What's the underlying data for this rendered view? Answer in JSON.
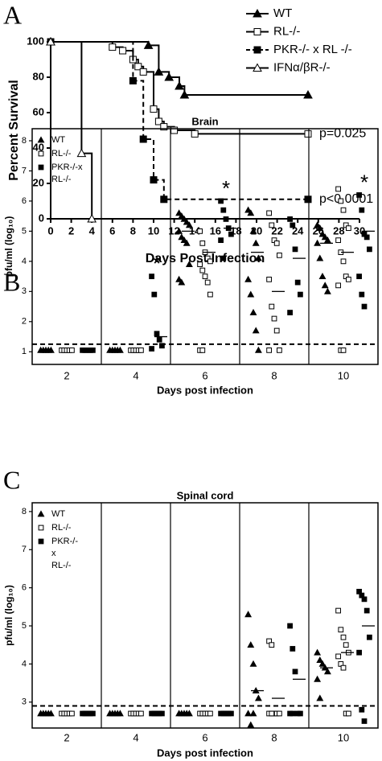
{
  "chart_data": [
    {
      "type": "line",
      "panel": "A",
      "xlabel": "Days Post Infection",
      "ylabel": "Percent Survival",
      "xlim": [
        0,
        30
      ],
      "ylim": [
        0,
        100
      ],
      "xticks": [
        0,
        2,
        4,
        6,
        8,
        10,
        12,
        14,
        16,
        18,
        20,
        22,
        24,
        26,
        28,
        30
      ],
      "yticks": [
        0,
        20,
        40,
        60,
        80,
        100
      ],
      "step": true,
      "series": [
        {
          "name": "WT",
          "color": "#000000",
          "marker": "triangle",
          "filled": true,
          "dashed": false,
          "x": [
            0,
            9.5,
            10.5,
            11.5,
            12.5,
            13,
            25
          ],
          "values": [
            100,
            98,
            83,
            80,
            75,
            70,
            70
          ]
        },
        {
          "name": "RL-/-",
          "color": "#000000",
          "marker": "square",
          "filled": false,
          "dashed": false,
          "x": [
            0,
            6,
            7,
            8,
            8.5,
            9,
            10,
            10.5,
            11,
            12,
            14,
            25
          ],
          "values": [
            100,
            97,
            95,
            90,
            86,
            83,
            62,
            55,
            52,
            50,
            48,
            48
          ]
        },
        {
          "name": "PKR-/- x RL -/-",
          "color": "#000000",
          "marker": "square",
          "filled": true,
          "dashed": true,
          "x": [
            0,
            8,
            9,
            10,
            11,
            25
          ],
          "values": [
            100,
            78,
            45,
            22,
            11,
            11
          ]
        },
        {
          "name": "IFNα/βR-/-",
          "color": "#000000",
          "marker": "triangle",
          "filled": false,
          "dashed": false,
          "x": [
            0,
            3,
            4
          ],
          "values": [
            100,
            37,
            0
          ]
        }
      ],
      "annotations": [
        {
          "text": "p=0.025",
          "series": 1
        },
        {
          "text": "p<0.0001",
          "series": 2
        }
      ]
    },
    {
      "type": "dotplot",
      "panel": "B",
      "title": "Brain",
      "xlabel": "Days post infection",
      "ylabel": "pfu/ml (log₁₀)",
      "categories": [
        "2",
        "4",
        "6",
        "8",
        "10"
      ],
      "ylim": [
        0.58,
        8.4
      ],
      "yticks": [
        1,
        2,
        3,
        4,
        5,
        6,
        7,
        8
      ],
      "threshold": 1.25,
      "series": [
        {
          "name": "WT",
          "marker": "triangle",
          "filled": true,
          "values": [
            [
              1.05,
              1.05,
              1.05,
              1.05,
              1.05
            ],
            [
              1.05,
              1.05,
              1.05,
              1.05,
              1.05
            ],
            [
              5.6,
              5.5,
              5.4,
              5.3,
              5.2,
              5.0,
              4.8,
              4.7,
              4.6,
              3.9,
              3.4,
              3.3
            ],
            [
              5.7,
              5.6,
              5.0,
              4.6,
              4.1,
              3.4,
              2.9,
              2.3,
              1.7,
              1.05
            ],
            [
              5.2,
              5.1,
              4.9,
              4.8,
              4.7,
              4.6,
              4.1,
              3.5,
              3.2,
              3.0
            ]
          ],
          "medians": [
            null,
            null,
            5.0,
            4.3,
            4.6
          ]
        },
        {
          "name": "RL-/-",
          "marker": "square",
          "filled": false,
          "values": [
            [
              1.05,
              1.05,
              1.05,
              1.05,
              1.05
            ],
            [
              1.05,
              1.05,
              1.05,
              1.05,
              1.05
            ],
            [
              5.0,
              4.6,
              4.3,
              4.1,
              4.0,
              3.9,
              3.7,
              3.5,
              3.3,
              2.9,
              1.05,
              1.05
            ],
            [
              5.6,
              5.2,
              4.7,
              4.6,
              4.2,
              3.4,
              2.5,
              2.1,
              1.7,
              1.05,
              1.05
            ],
            [
              6.4,
              6.0,
              5.7,
              5.2,
              5.1,
              4.7,
              4.3,
              4.0,
              3.5,
              3.4,
              3.2,
              1.05,
              1.05
            ]
          ],
          "medians": [
            null,
            null,
            4.3,
            3.0,
            4.3
          ]
        },
        {
          "name": "PKR-/-x RL-/-",
          "marker": "square",
          "filled": true,
          "values": [
            [
              1.05,
              1.05,
              1.05,
              1.05,
              1.05
            ],
            [
              3.5,
              2.9,
              1.6,
              1.4,
              1.2,
              1.1
            ],
            [
              6.0,
              5.7,
              5.4,
              5.1,
              4.9,
              4.7,
              4.1
            ],
            [
              5.4,
              5.2,
              4.4,
              3.3,
              2.9,
              2.3
            ],
            [
              6.2,
              5.7,
              4.9,
              4.8,
              4.4,
              3.5,
              2.9,
              2.5
            ]
          ],
          "medians": [
            null,
            1.5,
            5.1,
            4.1,
            5.0
          ]
        }
      ],
      "annotations": [
        {
          "text": "*",
          "category": 1,
          "series": 2
        },
        {
          "text": "*",
          "category": 2,
          "series": 2
        },
        {
          "text": "*",
          "category": 4,
          "series": 2
        }
      ]
    },
    {
      "type": "dotplot",
      "panel": "C",
      "title": "Spinal cord",
      "xlabel": "Days post infection",
      "ylabel": "pfu/ml (log₁₀)",
      "categories": [
        "2",
        "4",
        "6",
        "8",
        "10"
      ],
      "ylim": [
        2.32,
        8.23
      ],
      "yticks": [
        3,
        4,
        5,
        6,
        7,
        8
      ],
      "threshold": 2.9,
      "series": [
        {
          "name": "WT",
          "marker": "triangle",
          "filled": true,
          "values": [
            [
              2.7,
              2.7,
              2.7,
              2.7,
              2.7
            ],
            [
              2.7,
              2.7,
              2.7,
              2.7,
              2.7
            ],
            [
              2.7,
              2.7,
              2.7,
              2.7,
              2.7
            ],
            [
              5.3,
              4.5,
              4.0,
              3.3,
              3.1,
              2.7,
              2.4,
              2.7
            ],
            [
              4.3,
              4.1,
              4.0,
              3.9,
              3.8,
              3.6,
              3.1
            ]
          ],
          "medians": [
            null,
            null,
            null,
            3.3,
            3.9
          ]
        },
        {
          "name": "RL-/-",
          "marker": "square",
          "filled": false,
          "values": [
            [
              2.7,
              2.7,
              2.7,
              2.7,
              2.7
            ],
            [
              2.7,
              2.7,
              2.7,
              2.7,
              2.7
            ],
            [
              2.7,
              2.7,
              2.7,
              2.7,
              2.7
            ],
            [
              4.6,
              4.5,
              2.7,
              2.7,
              2.7,
              2.7,
              2.7
            ],
            [
              5.4,
              4.9,
              4.7,
              4.5,
              4.3,
              4.2,
              4.0,
              3.9,
              2.7,
              2.7
            ]
          ],
          "medians": [
            null,
            null,
            null,
            3.1,
            4.3
          ]
        },
        {
          "name": "PKR-/- x RL-/-",
          "marker": "square",
          "filled": true,
          "values": [
            [
              2.7,
              2.7,
              2.7,
              2.7,
              2.7
            ],
            [
              2.7,
              2.7,
              2.7,
              2.7,
              2.7
            ],
            [
              2.7,
              2.7,
              2.7,
              2.7,
              2.7
            ],
            [
              5.0,
              4.4,
              3.8,
              2.7,
              2.7,
              2.7,
              2.7
            ],
            [
              5.9,
              5.8,
              5.7,
              5.4,
              4.7,
              4.3,
              2.8,
              2.5
            ]
          ],
          "medians": [
            null,
            null,
            null,
            3.6,
            5.0
          ]
        }
      ],
      "annotations": []
    }
  ]
}
